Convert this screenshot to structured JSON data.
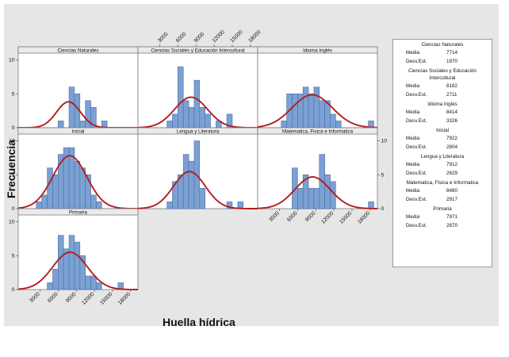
{
  "chart_data": {
    "type": "histogram",
    "xlabel": "Huella hídrica",
    "ylabel": "Frecuencia",
    "x_ticks": [
      3000,
      6000,
      9000,
      12000,
      15000,
      18000
    ],
    "x_tick_labels": [
      "3000",
      "6000",
      "9000",
      "12000",
      "15000",
      "18000"
    ],
    "y_ticks": [
      0,
      5,
      10
    ],
    "y_tick_labels": [
      "0",
      "5",
      "10"
    ],
    "xlim": [
      -600,
      19200
    ],
    "ylim": [
      0,
      11
    ],
    "bin_width": 900,
    "bin_start": 1500,
    "fit": "normal",
    "fit_color": "#b01e1e",
    "bar_color": "#7ba0d2",
    "panels": [
      {
        "name": "Ciencias Naturales",
        "mean": 7714,
        "sd": 1970,
        "counts": [
          0,
          0,
          0,
          0,
          0,
          1,
          0,
          6,
          5,
          1,
          4,
          3,
          0,
          1
        ]
      },
      {
        "name": "Ciencias Sociales  y Educación Intercultural",
        "mean": 8182,
        "sd": 2711,
        "counts": [
          0,
          0,
          0,
          1,
          2,
          9,
          4,
          3,
          7,
          3,
          2,
          0,
          1,
          0,
          2
        ]
      },
      {
        "name": "Idioma Inglés",
        "mean": 8414,
        "sd": 3326,
        "counts": [
          0,
          0,
          1,
          5,
          5,
          5,
          6,
          5,
          6,
          4,
          4,
          2,
          1,
          0,
          0,
          0,
          0,
          0,
          1
        ]
      },
      {
        "name": "Inicial",
        "mean": 7922,
        "sd": 2804,
        "counts": [
          0,
          1,
          2,
          6,
          5,
          8,
          9,
          9,
          7,
          6,
          5,
          2,
          1
        ]
      },
      {
        "name": "Lengua y Literatura",
        "mean": 7912,
        "sd": 2629,
        "counts": [
          0,
          0,
          0,
          1,
          4,
          5,
          8,
          7,
          10,
          3,
          0,
          0,
          0,
          0,
          1,
          0,
          1
        ]
      },
      {
        "name": "Matematica, Fisica e Informatica",
        "mean": 8480,
        "sd": 2917,
        "counts": [
          0,
          0,
          0,
          0,
          6,
          3,
          5,
          3,
          3,
          8,
          5,
          4,
          0,
          0,
          0,
          0,
          0,
          0,
          1
        ]
      },
      {
        "name": "Primaria",
        "mean": 7971,
        "sd": 2870,
        "counts": [
          0,
          0,
          0,
          1,
          3,
          8,
          6,
          8,
          7,
          5,
          2,
          2,
          1,
          0,
          0,
          0,
          1
        ]
      }
    ]
  },
  "legend": {
    "groups": [
      {
        "title": "Ciencias Naturales",
        "mean_label": "Media",
        "mean": "7714",
        "sd_label": "Desv.Est.",
        "sd": "1970"
      },
      {
        "title": "Ciencias Sociales  y Educación Intercultural",
        "mean_label": "Media",
        "mean": "8182",
        "sd_label": "Desv.Est.",
        "sd": "2711"
      },
      {
        "title": "Idioma Inglés",
        "mean_label": "Media",
        "mean": "8414",
        "sd_label": "Desv.Est.",
        "sd": "3326"
      },
      {
        "title": "Inicial",
        "mean_label": "Media",
        "mean": "7922",
        "sd_label": "Desv.Est.",
        "sd": "2804"
      },
      {
        "title": "Lengua y Literatura",
        "mean_label": "Media",
        "mean": "7912",
        "sd_label": "Desv.Est.",
        "sd": "2629"
      },
      {
        "title": "Matematica, Fisica e Informatica",
        "mean_label": "Media",
        "mean": "8480",
        "sd_label": "Desv.Est.",
        "sd": "2917"
      },
      {
        "title": "Primaria",
        "mean_label": "Media",
        "mean": "7971",
        "sd_label": "Desv.Est.",
        "sd": "2870"
      }
    ]
  }
}
